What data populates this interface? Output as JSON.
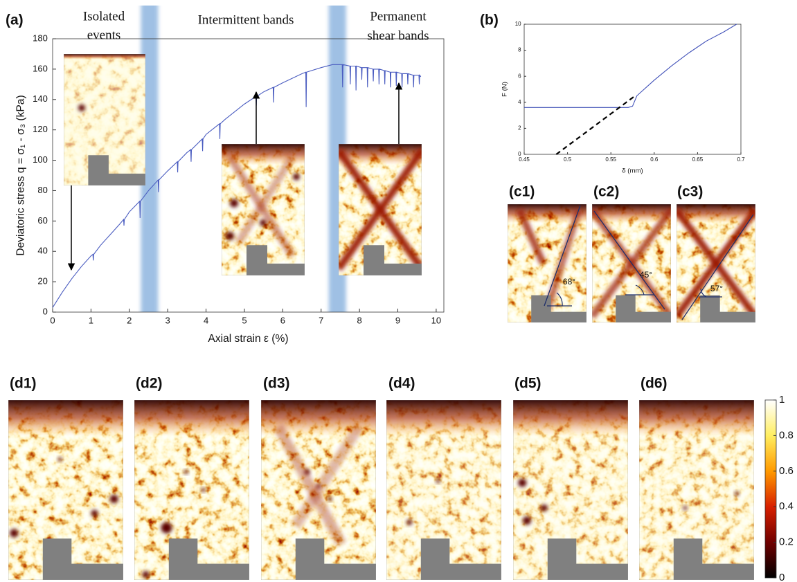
{
  "panel_labels": [
    "(a)",
    "(b)",
    "(c1)",
    "(c2)",
    "(c3)",
    "(d1)",
    "(d2)",
    "(d3)",
    "(d4)",
    "(d5)",
    "(d6)"
  ],
  "angle_labels": [
    "68°",
    "45°",
    "57°"
  ],
  "chart_data": [
    {
      "type": "line",
      "xlabel": "Axial strain ε (%)",
      "ylabel": "Deviatoric stress q = σ₁ - σ₃ (kPa)",
      "annotations": [
        [
          "Isolated",
          "events"
        ],
        [
          "Intermittent bands"
        ],
        [
          "Permanent",
          "shear bands"
        ]
      ],
      "xlim": [
        0,
        10.2
      ],
      "ylim": [
        0,
        180
      ],
      "xticks": [
        0,
        1,
        2,
        3,
        4,
        5,
        6,
        7,
        8,
        9,
        10
      ],
      "yticks": [
        0,
        20,
        40,
        60,
        80,
        100,
        120,
        140,
        160,
        180
      ],
      "color": "#4a5cc0",
      "shade_color": "#8fb6e0",
      "shaded_regions": [
        [
          2.3,
          2.75
        ],
        [
          7.2,
          7.65
        ]
      ],
      "x": [
        0,
        0.25,
        0.5,
        0.75,
        1,
        1.05,
        1.06,
        1.07,
        1.25,
        1.5,
        1.75,
        1.85,
        1.86,
        1.87,
        2,
        2.27,
        2.28,
        2.29,
        2.5,
        2.75,
        2.76,
        2.77,
        3,
        3.25,
        3.26,
        3.27,
        3.5,
        3.6,
        3.61,
        3.62,
        3.9,
        3.91,
        3.92,
        4,
        4.35,
        4.36,
        4.37,
        4.5,
        5,
        5.3,
        5.31,
        5.32,
        5.5,
        5.75,
        5.76,
        5.77,
        6,
        6.5,
        6.6,
        6.61,
        6.62,
        7,
        7.3,
        7.55,
        7.56,
        7.57,
        7.75,
        7.76,
        7.77,
        7.9,
        7.91,
        7.92,
        8.05,
        8.06,
        8.07,
        8.2,
        8.21,
        8.22,
        8.35,
        8.36,
        8.37,
        8.5,
        8.51,
        8.52,
        8.65,
        8.66,
        8.67,
        8.8,
        8.81,
        8.82,
        8.95,
        8.96,
        8.97,
        9.1,
        9.11,
        9.12,
        9.25,
        9.26,
        9.27,
        9.4,
        9.41,
        9.42,
        9.55,
        9.56,
        9.57,
        9.6
      ],
      "values": [
        3,
        13,
        22,
        30,
        37,
        38,
        34,
        38,
        44,
        51,
        58,
        61,
        57,
        61,
        66,
        73,
        62,
        73,
        80,
        87,
        79,
        87,
        93,
        99,
        92,
        99,
        105,
        107,
        99,
        107,
        114,
        106,
        114,
        117,
        124,
        114,
        124,
        127,
        137,
        142,
        136,
        142,
        145,
        148,
        138,
        148,
        151,
        157,
        158,
        135,
        158,
        161,
        163,
        163,
        148,
        163,
        162,
        150,
        162,
        162,
        146,
        162,
        161,
        153,
        161,
        161,
        148,
        161,
        160,
        152,
        160,
        160,
        150,
        160,
        159,
        150,
        159,
        158,
        148,
        158,
        158,
        149,
        158,
        157,
        148,
        157,
        157,
        150,
        157,
        156,
        148,
        156,
        156,
        150,
        156,
        155
      ]
    },
    {
      "type": "line",
      "xlabel": "δ (mm)",
      "ylabel": "F (N)",
      "xlim": [
        0.45,
        0.7
      ],
      "ylim": [
        0,
        10
      ],
      "xticks": [
        0.45,
        0.5,
        0.55,
        0.6,
        0.65,
        0.7
      ],
      "yticks": [
        0,
        2,
        4,
        6,
        8,
        10
      ],
      "color": "#4050b8",
      "x": [
        0.45,
        0.5,
        0.55,
        0.57,
        0.575,
        0.58,
        0.6,
        0.62,
        0.64,
        0.66,
        0.68,
        0.695
      ],
      "values": [
        3.6,
        3.6,
        3.6,
        3.6,
        3.7,
        4.5,
        5.7,
        6.8,
        7.8,
        8.7,
        9.4,
        10
      ],
      "fit_line": {
        "x": [
          0.487,
          0.578
        ],
        "values": [
          0,
          4.5
        ],
        "color": "#000000",
        "style": "dashed"
      }
    },
    {
      "type": "colorbar",
      "ylim": [
        0,
        1
      ],
      "yticks": [
        0,
        0.2,
        0.4,
        0.6,
        0.8,
        1
      ]
    }
  ]
}
